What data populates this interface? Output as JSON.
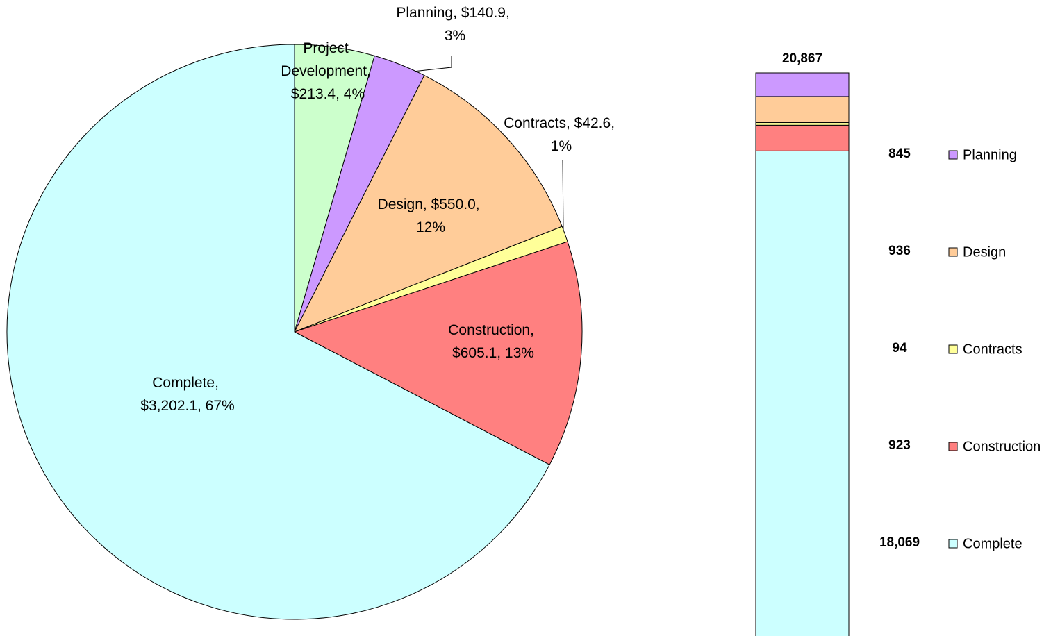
{
  "chart_data": [
    {
      "type": "pie",
      "categories": [
        "Project Development",
        "Planning",
        "Design",
        "Contracts",
        "Construction",
        "Complete"
      ],
      "values": [
        213.4,
        140.9,
        550.0,
        42.6,
        605.1,
        3202.1
      ],
      "value_labels": [
        "Project Development, $213.4, 4%",
        "Planning, $140.9, 3%",
        "Design, $550.0, 12%",
        "Contracts, $42.6, 1%",
        "Construction, $605.1, 13%",
        "Complete, $3,202.1, 67%"
      ],
      "colors": [
        "#ccffcc",
        "#cc99ff",
        "#ffcc99",
        "#ffff99",
        "#ff8080",
        "#ccffff"
      ]
    },
    {
      "type": "stacked_bar",
      "total": 20867,
      "total_label": "20,867",
      "ylim": [
        0,
        20867
      ],
      "series": [
        {
          "name": "Complete",
          "color": "#ccffff",
          "values": [
            18069
          ],
          "value_labels": [
            "18,069"
          ]
        },
        {
          "name": "Construction",
          "color": "#ff8080",
          "values": [
            923
          ],
          "value_labels": [
            "923"
          ]
        },
        {
          "name": "Contracts",
          "color": "#ffff99",
          "values": [
            94
          ],
          "value_labels": [
            "94"
          ]
        },
        {
          "name": "Design",
          "color": "#ffcc99",
          "values": [
            936
          ],
          "value_labels": [
            "936"
          ]
        },
        {
          "name": "Planning",
          "color": "#cc99ff",
          "values": [
            845
          ],
          "value_labels": [
            "845"
          ]
        }
      ],
      "legend": "right"
    }
  ]
}
